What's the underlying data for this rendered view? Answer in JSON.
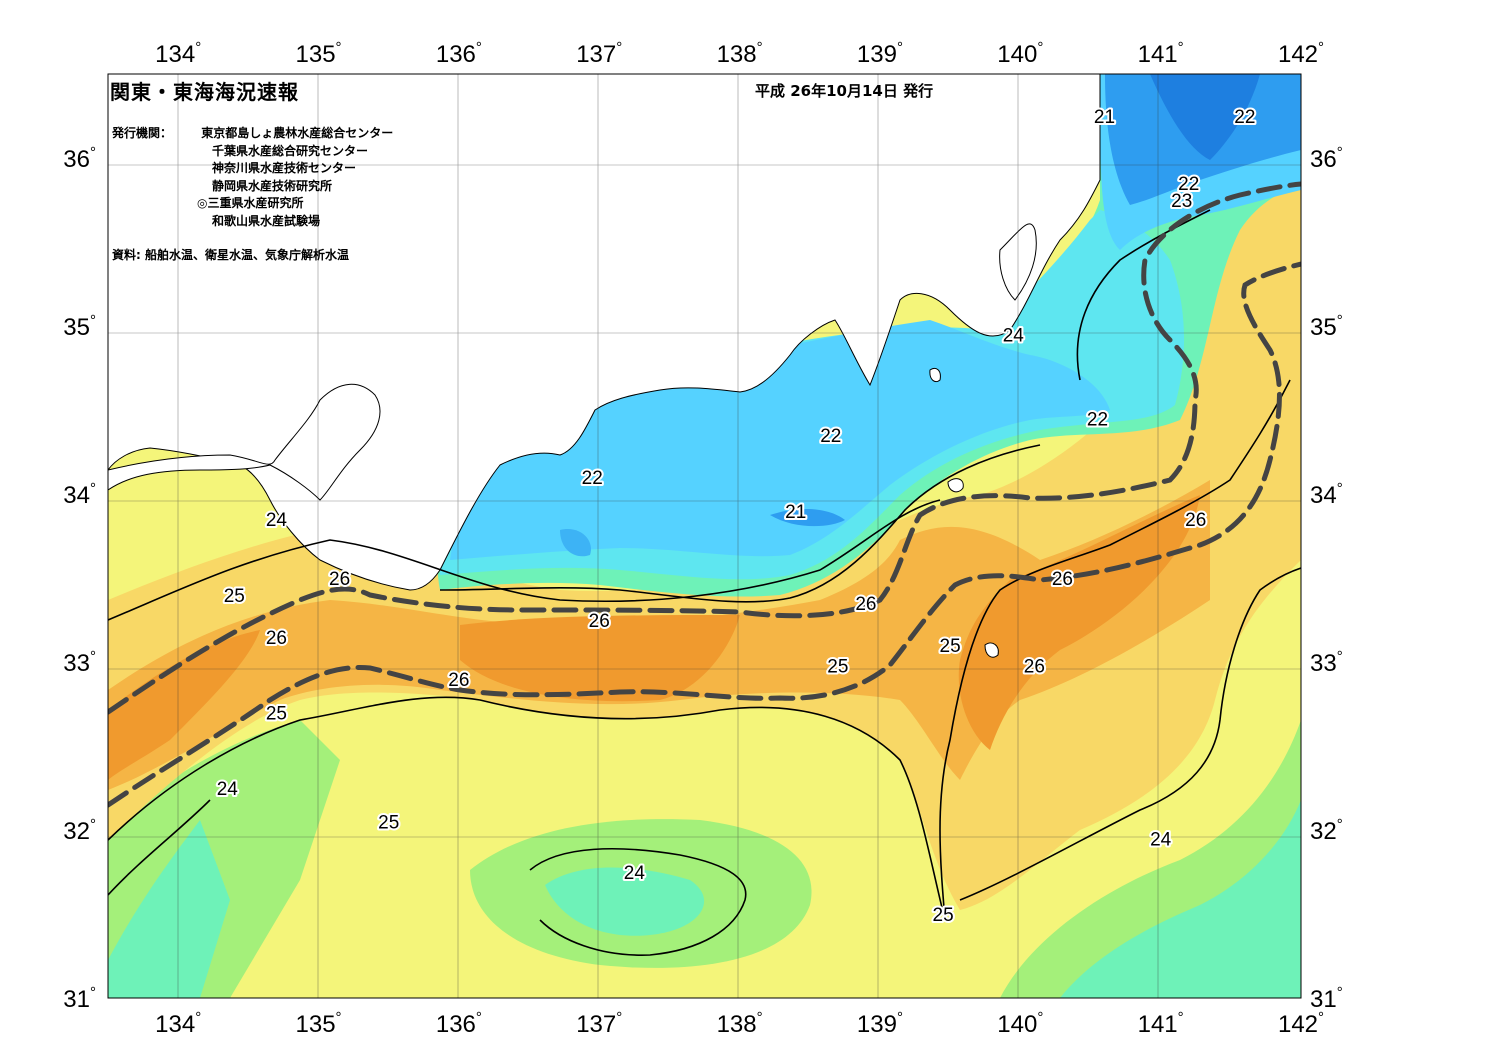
{
  "title": "関東・東海海況速報",
  "issue_date": "平成 26年10月14日 発行",
  "issuers": {
    "label": "発行機関：",
    "organizations": [
      "東京都島しょ農林水産総合センター",
      "千葉県水産総合研究センター",
      "神奈川県水産技術センター",
      "静岡県水産技術研究所",
      "◎三重県水産研究所",
      "和歌山県水産試験場"
    ]
  },
  "sources": "資料: 船舶水温、衛星水温、気象庁解析水温",
  "axes": {
    "longitude_labels": [
      "134",
      "135",
      "136",
      "137",
      "138",
      "139",
      "140",
      "141",
      "142"
    ],
    "latitude_labels": [
      "36",
      "35",
      "34",
      "33",
      "32",
      "31"
    ],
    "degree_symbol": "°",
    "longitude_range": [
      133.5,
      142
    ],
    "latitude_range": [
      31,
      36.5
    ]
  },
  "contour_labels": [
    {
      "text": "21",
      "lon": 140.6,
      "lat": 36.25
    },
    {
      "text": "22",
      "lon": 141.6,
      "lat": 36.25
    },
    {
      "text": "22",
      "lon": 141.2,
      "lat": 35.85
    },
    {
      "text": "23",
      "lon": 141.15,
      "lat": 35.75
    },
    {
      "text": "24",
      "lon": 139.95,
      "lat": 34.95
    },
    {
      "text": "22",
      "lon": 140.55,
      "lat": 34.45
    },
    {
      "text": "22",
      "lon": 138.65,
      "lat": 34.35
    },
    {
      "text": "22",
      "lon": 136.95,
      "lat": 34.1
    },
    {
      "text": "21",
      "lon": 138.4,
      "lat": 33.9
    },
    {
      "text": "24",
      "lon": 134.7,
      "lat": 33.85
    },
    {
      "text": "26",
      "lon": 141.25,
      "lat": 33.85
    },
    {
      "text": "26",
      "lon": 135.15,
      "lat": 33.5
    },
    {
      "text": "26",
      "lon": 140.3,
      "lat": 33.5
    },
    {
      "text": "25",
      "lon": 134.4,
      "lat": 33.4
    },
    {
      "text": "26",
      "lon": 138.9,
      "lat": 33.35
    },
    {
      "text": "26",
      "lon": 137.0,
      "lat": 33.25
    },
    {
      "text": "26",
      "lon": 134.7,
      "lat": 33.15
    },
    {
      "text": "25",
      "lon": 139.5,
      "lat": 33.1
    },
    {
      "text": "25",
      "lon": 138.7,
      "lat": 32.98
    },
    {
      "text": "26",
      "lon": 140.1,
      "lat": 32.98
    },
    {
      "text": "26",
      "lon": 136.0,
      "lat": 32.9
    },
    {
      "text": "25",
      "lon": 134.7,
      "lat": 32.7
    },
    {
      "text": "24",
      "lon": 134.35,
      "lat": 32.25
    },
    {
      "text": "25",
      "lon": 135.5,
      "lat": 32.05
    },
    {
      "text": "24",
      "lon": 141.0,
      "lat": 31.95
    },
    {
      "text": "24",
      "lon": 137.25,
      "lat": 31.75
    },
    {
      "text": "25",
      "lon": 139.45,
      "lat": 31.5
    }
  ],
  "temperature_colors": {
    "21": "#2e9df0",
    "22": "#55d2ff",
    "23": "#5ee6f0",
    "24": "#6ef2b8",
    "24.5": "#a4f07a",
    "25": "#f4f57a",
    "25.5": "#f8d866",
    "26": "#f5b545",
    "26.5": "#f09a2e"
  },
  "kuroshio_path": "dashed dark gray line marking the Kuroshio current axis"
}
